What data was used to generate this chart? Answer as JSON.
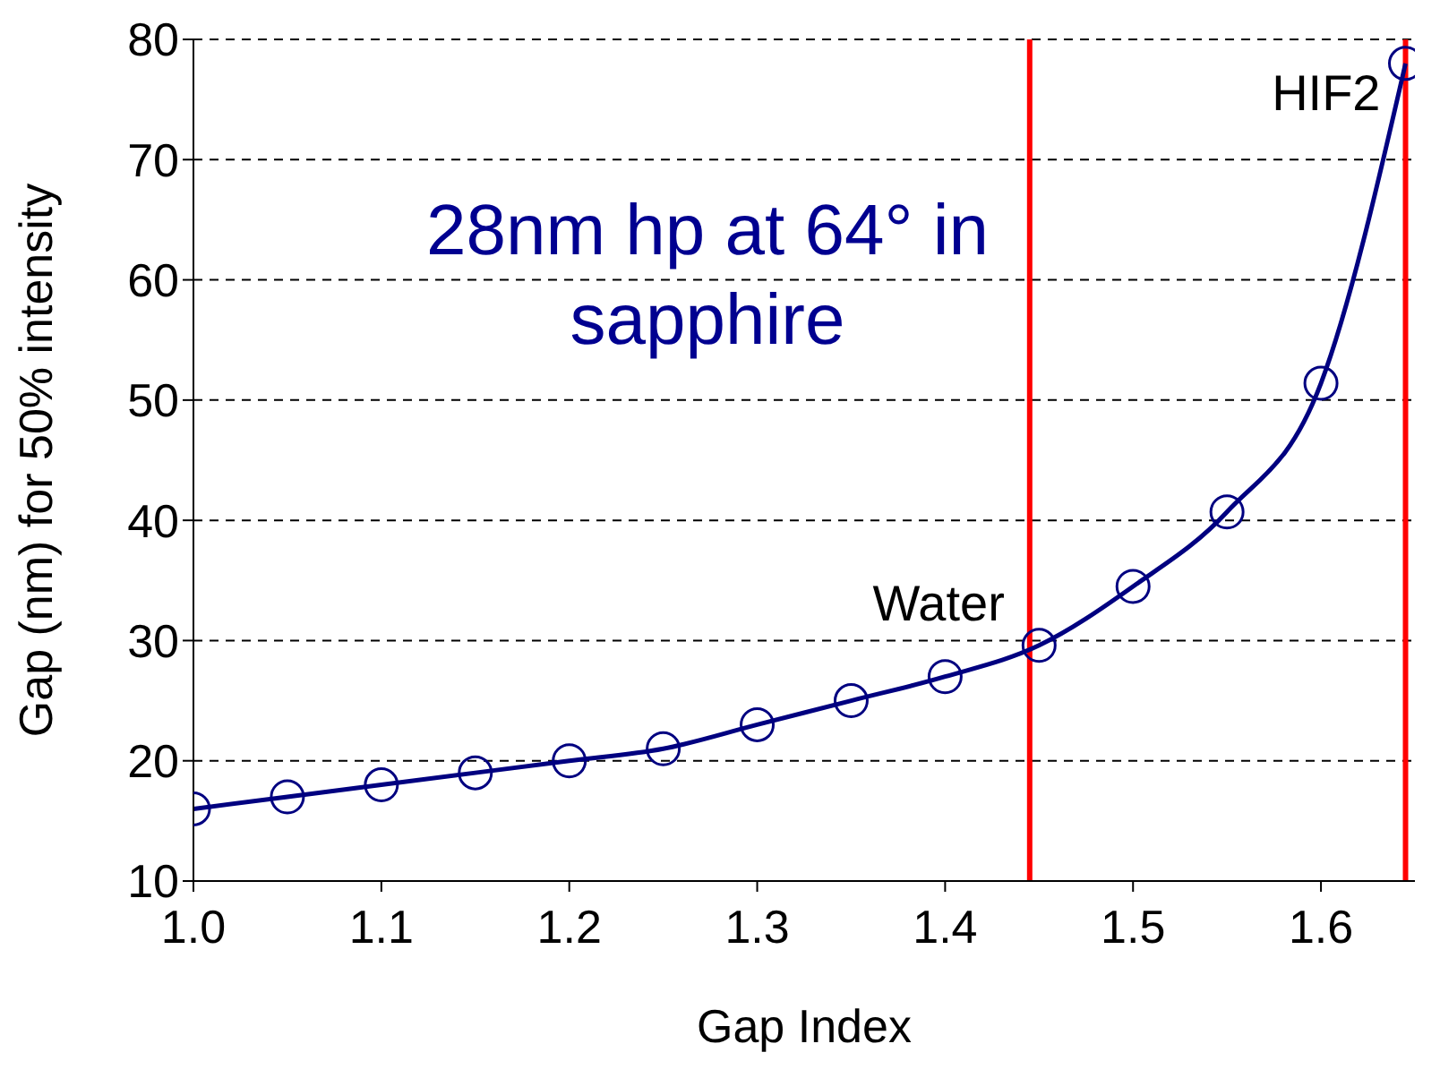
{
  "chart_data": {
    "type": "line",
    "xlabel": "Gap Index",
    "ylabel": "Gap (nm) for 50% intensity",
    "annotations": [
      "28nm hp at 64° in sapphire"
    ],
    "series": [
      {
        "color": "#000080",
        "x": [
          1.0,
          1.05,
          1.1,
          1.15,
          1.2,
          1.25,
          1.3,
          1.35,
          1.4,
          1.45,
          1.5,
          1.55,
          1.6,
          1.645
        ],
        "values": [
          16,
          17,
          18,
          19,
          20,
          21,
          23,
          25,
          27,
          29.6,
          34.5,
          40.7,
          51.4,
          78
        ]
      }
    ],
    "xlim": [
      1.0,
      1.65
    ],
    "xticks": [
      {
        "value": 1.0,
        "label": "1.0"
      },
      1.1,
      1.2,
      1.3,
      1.4,
      1.5,
      1.6
    ],
    "ylim": [
      10,
      80
    ],
    "yticks": [
      10,
      20,
      30,
      40,
      50,
      60,
      70,
      80
    ],
    "ref_lines": [
      {
        "axis": "x",
        "value": 1.445,
        "label": "Water",
        "color": "#ff0000"
      },
      {
        "axis": "x",
        "value": 1.645,
        "label": "HIF2",
        "color": "#ff0000"
      }
    ],
    "grid": "y",
    "marker": "circle",
    "line_style": "solid"
  }
}
